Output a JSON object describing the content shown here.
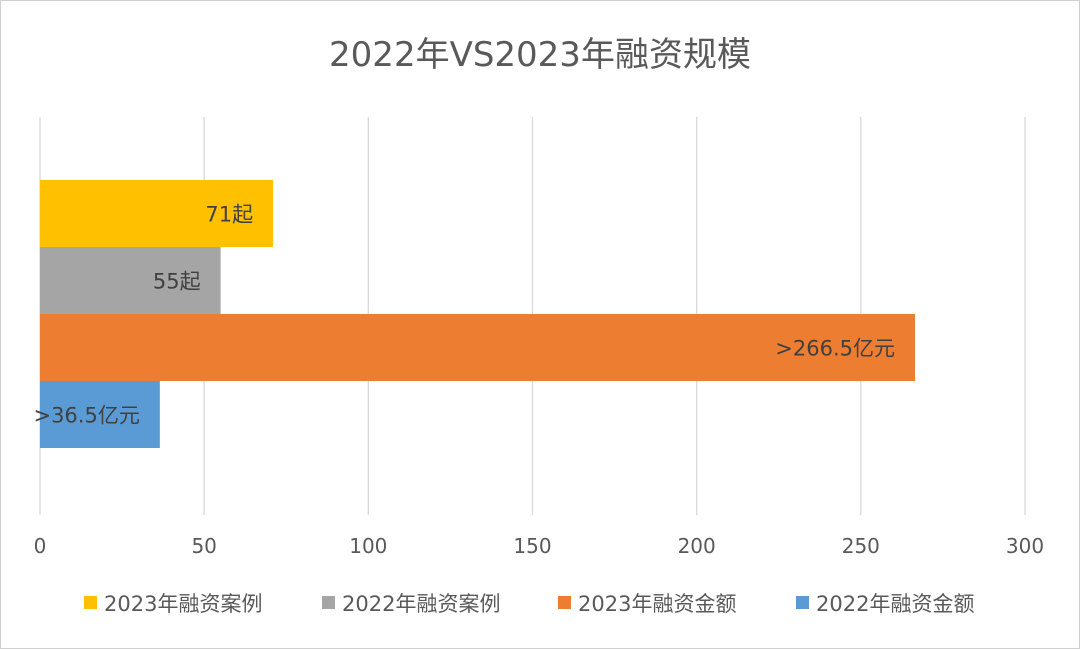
{
  "chart_data": {
    "type": "bar",
    "orientation": "horizontal",
    "title": "2022年VS2023年融资规模",
    "xlabel": "",
    "ylabel": "",
    "xlim": [
      0,
      300
    ],
    "x_ticks": [
      0,
      50,
      100,
      150,
      200,
      250,
      300
    ],
    "grid": true,
    "legend_position": "bottom",
    "series": [
      {
        "name": "2023年融资案例",
        "value": 71,
        "label": "71起",
        "color": "#FFC000"
      },
      {
        "name": "2022年融资案例",
        "value": 55,
        "label": "55起",
        "color": "#A5A5A5"
      },
      {
        "name": "2023年融资金额",
        "value": 266.5,
        "label": ">266.5亿元",
        "color": "#ED7D31"
      },
      {
        "name": "2022年融资金额",
        "value": 36.5,
        "label": ">36.5亿元",
        "color": "#5B9BD5"
      }
    ]
  }
}
